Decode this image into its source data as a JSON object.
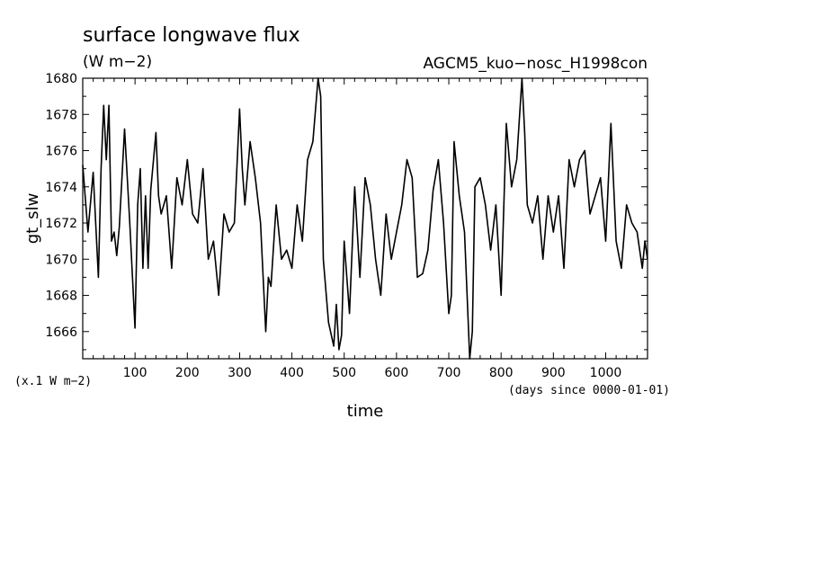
{
  "chart_data": {
    "type": "line",
    "title": "surface longwave flux",
    "units": "(W m−2)",
    "experiment": "AGCM5_kuo−nosc_H1998con",
    "xlabel": "time",
    "xunits": "(days since 0000-01-01)",
    "ylabel": "gt_slw",
    "yscale_note": "(x.1 W m−2)",
    "xlim": [
      0,
      1080
    ],
    "ylim": [
      1664.5,
      1680
    ],
    "xticks": [
      100,
      200,
      300,
      400,
      500,
      600,
      700,
      800,
      900,
      1000
    ],
    "yticks": [
      1666,
      1668,
      1670,
      1672,
      1674,
      1676,
      1678,
      1680
    ],
    "grid": false,
    "series": [
      {
        "color": "#000000",
        "x": [
          0,
          10,
          20,
          30,
          35,
          40,
          45,
          50,
          55,
          60,
          65,
          70,
          80,
          90,
          100,
          105,
          110,
          115,
          120,
          125,
          130,
          140,
          145,
          150,
          160,
          170,
          180,
          190,
          200,
          210,
          220,
          230,
          240,
          250,
          260,
          270,
          280,
          290,
          300,
          305,
          310,
          320,
          330,
          340,
          350,
          355,
          360,
          370,
          380,
          390,
          400,
          410,
          420,
          430,
          440,
          450,
          455,
          460,
          470,
          480,
          485,
          490,
          495,
          500,
          510,
          520,
          530,
          540,
          550,
          560,
          570,
          580,
          590,
          600,
          610,
          620,
          630,
          640,
          650,
          660,
          670,
          680,
          690,
          700,
          705,
          710,
          720,
          730,
          740,
          745,
          750,
          760,
          770,
          780,
          790,
          800,
          810,
          820,
          830,
          840,
          845,
          850,
          860,
          870,
          880,
          890,
          900,
          910,
          920,
          930,
          940,
          950,
          960,
          970,
          980,
          990,
          1000,
          1010,
          1020,
          1030,
          1040,
          1050,
          1060,
          1070,
          1075,
          1080
        ],
        "values": [
          1675.2,
          1671.5,
          1674.8,
          1669.0,
          1675.0,
          1678.5,
          1675.5,
          1678.5,
          1671.0,
          1671.5,
          1670.2,
          1671.8,
          1677.2,
          1672.0,
          1666.2,
          1673.0,
          1675.0,
          1669.5,
          1673.5,
          1669.5,
          1673.8,
          1677.0,
          1673.5,
          1672.5,
          1673.5,
          1669.5,
          1674.5,
          1673.0,
          1675.5,
          1672.5,
          1672.0,
          1675.0,
          1670.0,
          1671.0,
          1668.0,
          1672.5,
          1671.5,
          1672.0,
          1678.3,
          1675.0,
          1673.0,
          1676.5,
          1674.5,
          1672.0,
          1666.0,
          1669.0,
          1668.5,
          1673.0,
          1670.0,
          1670.5,
          1669.5,
          1673.0,
          1671.0,
          1675.5,
          1676.5,
          1680.0,
          1679.0,
          1670.0,
          1666.5,
          1665.2,
          1667.5,
          1665.0,
          1665.8,
          1671.0,
          1667.0,
          1674.0,
          1669.0,
          1674.5,
          1673.0,
          1670.0,
          1668.0,
          1672.5,
          1670.0,
          1671.5,
          1673.0,
          1675.5,
          1674.5,
          1669.0,
          1669.2,
          1670.5,
          1673.8,
          1675.5,
          1672.0,
          1667.0,
          1668.0,
          1676.5,
          1673.5,
          1671.5,
          1664.5,
          1666.0,
          1674.0,
          1674.5,
          1673.0,
          1670.5,
          1673.0,
          1668.0,
          1677.5,
          1674.0,
          1675.5,
          1680.0,
          1677.0,
          1673.0,
          1672.0,
          1673.5,
          1670.0,
          1673.5,
          1671.5,
          1673.5,
          1669.5,
          1675.5,
          1674.0,
          1675.5,
          1676.0,
          1672.5,
          1673.5,
          1674.5,
          1671.0,
          1677.5,
          1671.0,
          1669.5,
          1673.0,
          1672.0,
          1671.5,
          1669.5,
          1671.0,
          1670.0
        ]
      }
    ]
  }
}
